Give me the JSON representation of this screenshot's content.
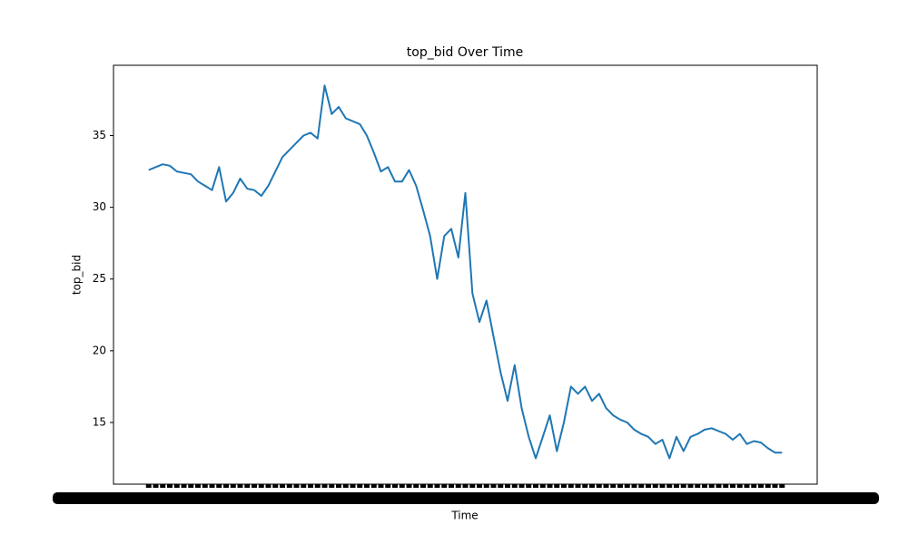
{
  "chart_data": {
    "type": "line",
    "title": "top_bid Over Time",
    "x_label": "Time",
    "y_label": "top_bid",
    "categories": [
      null,
      null,
      null,
      null,
      null,
      null,
      null,
      null,
      null,
      null,
      null,
      null,
      null,
      null,
      null,
      null,
      null,
      null,
      null,
      null,
      null,
      null,
      null,
      null,
      null,
      null,
      null,
      null,
      null,
      null,
      null,
      null,
      null,
      null,
      null,
      null,
      null,
      null,
      null,
      null,
      null,
      null,
      null,
      null,
      null,
      null,
      null,
      null,
      null,
      null,
      null,
      null,
      null,
      null,
      null,
      null,
      null,
      null,
      null,
      null,
      null,
      null,
      null,
      null,
      null,
      null,
      null,
      null,
      null,
      null,
      null,
      null,
      null,
      null,
      null,
      null,
      null,
      null,
      null,
      null,
      null,
      null,
      null,
      null,
      null,
      null,
      null,
      null,
      null,
      null,
      null
    ],
    "series": [
      {
        "name": "top_bid",
        "color": "#1f77b4",
        "values": [
          32.6,
          32.8,
          33.0,
          32.9,
          32.5,
          32.4,
          32.3,
          31.8,
          31.5,
          31.2,
          32.8,
          30.4,
          31.0,
          32.0,
          31.3,
          31.2,
          30.8,
          31.5,
          32.5,
          33.5,
          34.0,
          34.5,
          35.0,
          35.2,
          34.8,
          38.5,
          36.5,
          37.0,
          36.2,
          36.0,
          35.8,
          35.0,
          33.8,
          32.5,
          32.8,
          31.8,
          31.8,
          32.6,
          31.5,
          29.8,
          28.0,
          25.0,
          28.0,
          28.5,
          26.5,
          31.0,
          24.0,
          22.0,
          23.5,
          21.0,
          18.5,
          16.5,
          19.0,
          16.0,
          14.0,
          12.5,
          14.0,
          15.5,
          13.0,
          15.0,
          17.5,
          17.0,
          17.5,
          16.5,
          17.0,
          16.0,
          15.5,
          15.2,
          15.0,
          14.5,
          14.2,
          14.0,
          13.5,
          13.8,
          12.5,
          14.0,
          13.0,
          14.0,
          14.2,
          14.5,
          14.6,
          14.4,
          14.2,
          13.8,
          14.2,
          13.5,
          13.7,
          13.6,
          13.2,
          12.9,
          12.9
        ]
      }
    ],
    "ylim": [
      10.7,
      39.9
    ],
    "yticks": [
      15,
      20,
      25,
      30,
      35
    ]
  }
}
